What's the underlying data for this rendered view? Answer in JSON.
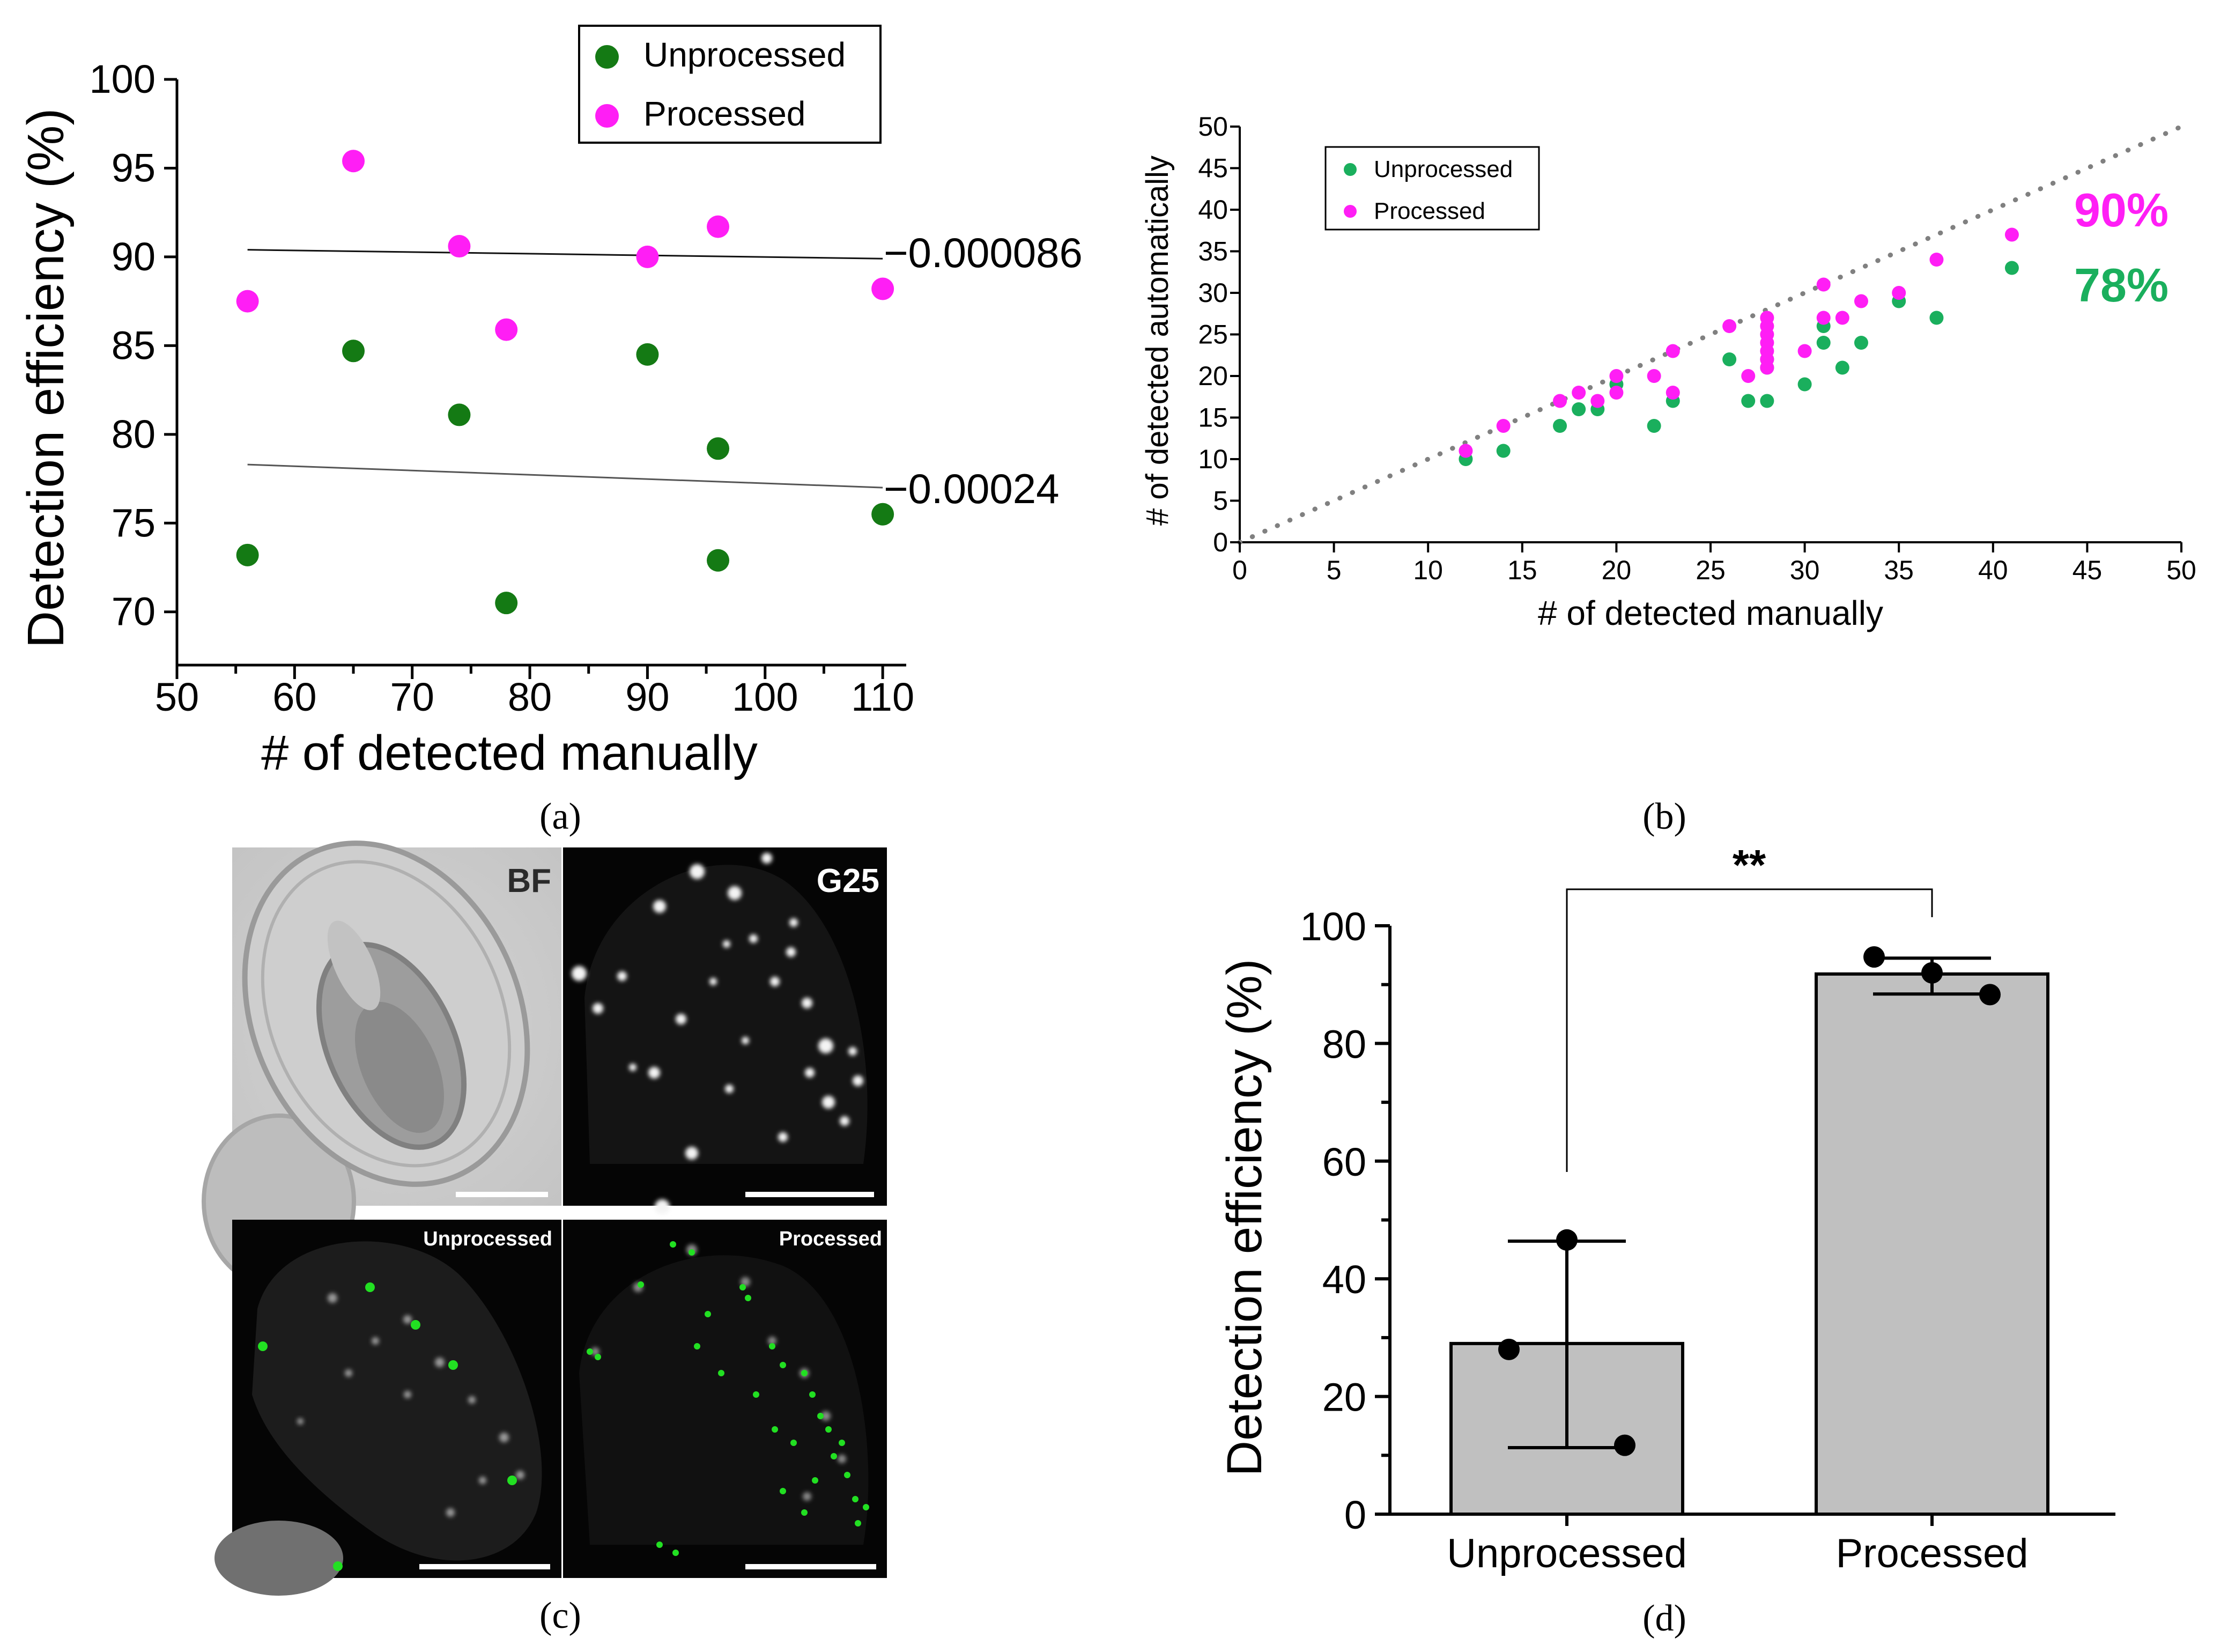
{
  "panels": {
    "a": {
      "label": "(a)"
    },
    "b": {
      "label": "(b)"
    },
    "c": {
      "label": "(c)"
    },
    "d": {
      "label": "(d)"
    }
  },
  "colors": {
    "unprocessed_a": "#147a14",
    "processed": "#ff1ef5",
    "unprocessed_b": "#1aaf5d",
    "bar_fill": "#c0c0c0"
  },
  "chart_data": [
    {
      "panel": "a",
      "type": "scatter",
      "xlabel": "# of detected manually",
      "ylabel": "Detection efficiency (%)",
      "xlim": [
        50,
        112
      ],
      "ylim": [
        67,
        100
      ],
      "xticks": [
        50,
        60,
        70,
        80,
        90,
        100,
        110
      ],
      "yticks": [
        70,
        75,
        80,
        85,
        90,
        95,
        100
      ],
      "legend_position": "top-right",
      "series": [
        {
          "name": "Unprocessed",
          "color": "#147a14",
          "points": [
            [
              56,
              73.2
            ],
            [
              65,
              84.7
            ],
            [
              74,
              81.1
            ],
            [
              78,
              70.5
            ],
            [
              90,
              84.5
            ],
            [
              96,
              79.2
            ],
            [
              96,
              72.9
            ],
            [
              110,
              75.5
            ]
          ],
          "trend": {
            "x": [
              56,
              110
            ],
            "y": [
              78.3,
              77.0
            ],
            "slope_label": "−0.00024"
          }
        },
        {
          "name": "Processed",
          "color": "#ff1ef5",
          "points": [
            [
              56,
              87.5
            ],
            [
              65,
              95.4
            ],
            [
              74,
              90.6
            ],
            [
              78,
              85.9
            ],
            [
              90,
              90.0
            ],
            [
              96,
              91.7
            ],
            [
              110,
              88.2
            ]
          ],
          "trend": {
            "x": [
              56,
              110
            ],
            "y": [
              90.4,
              89.9
            ],
            "slope_label": "−0.000086"
          }
        }
      ]
    },
    {
      "panel": "b",
      "type": "scatter",
      "xlabel": "# of detected manually",
      "ylabel": "# of detected automatically",
      "xlim": [
        0,
        50
      ],
      "ylim": [
        0,
        50
      ],
      "xticks": [
        0,
        5,
        10,
        15,
        20,
        25,
        30,
        35,
        40,
        45,
        50
      ],
      "yticks": [
        0,
        5,
        10,
        15,
        20,
        25,
        30,
        35,
        40,
        45,
        50
      ],
      "legend_position": "top-left",
      "reference_line": "y = x (dotted)",
      "annotations": [
        {
          "text": "90%",
          "color": "#ff1ef5"
        },
        {
          "text": "78%",
          "color": "#1aaf5d"
        }
      ],
      "series": [
        {
          "name": "Unprocessed",
          "color": "#1aaf5d",
          "points": [
            [
              12,
              10
            ],
            [
              14,
              11
            ],
            [
              17,
              14
            ],
            [
              18,
              16
            ],
            [
              19,
              16
            ],
            [
              20,
              19
            ],
            [
              22,
              14
            ],
            [
              23,
              17
            ],
            [
              26,
              22
            ],
            [
              27,
              17
            ],
            [
              28,
              17
            ],
            [
              28,
              21
            ],
            [
              28,
              22
            ],
            [
              30,
              19
            ],
            [
              31,
              24
            ],
            [
              31,
              26
            ],
            [
              32,
              21
            ],
            [
              33,
              24
            ],
            [
              35,
              29
            ],
            [
              37,
              27
            ],
            [
              41,
              33
            ]
          ]
        },
        {
          "name": "Processed",
          "color": "#ff1ef5",
          "points": [
            [
              12,
              11
            ],
            [
              14,
              14
            ],
            [
              17,
              17
            ],
            [
              18,
              18
            ],
            [
              19,
              17
            ],
            [
              20,
              18
            ],
            [
              20,
              20
            ],
            [
              22,
              20
            ],
            [
              23,
              18
            ],
            [
              23,
              23
            ],
            [
              26,
              26
            ],
            [
              27,
              20
            ],
            [
              28,
              21
            ],
            [
              28,
              22
            ],
            [
              28,
              23
            ],
            [
              28,
              24
            ],
            [
              28,
              25
            ],
            [
              28,
              26
            ],
            [
              28,
              27
            ],
            [
              30,
              23
            ],
            [
              31,
              27
            ],
            [
              31,
              31
            ],
            [
              32,
              27
            ],
            [
              33,
              29
            ],
            [
              35,
              30
            ],
            [
              37,
              34
            ],
            [
              41,
              37
            ]
          ]
        }
      ]
    },
    {
      "panel": "d",
      "type": "bar",
      "ylabel": "Detection efficiency (%)",
      "categories": [
        "Unprocessed",
        "Processed"
      ],
      "values": [
        29,
        91.8
      ],
      "error_low": [
        11.3,
        88.4
      ],
      "error_high": [
        46.4,
        94.5
      ],
      "points": [
        [
          46.6,
          28.0,
          11.7
        ],
        [
          94.7,
          92.0,
          88.3
        ]
      ],
      "ylim": [
        0,
        100
      ],
      "yticks": [
        0,
        20,
        40,
        60,
        80,
        100
      ],
      "significance": "**"
    }
  ],
  "images": {
    "bf": "BF",
    "g25": "G25",
    "unprocessed": "Unprocessed",
    "processed": "Processed"
  }
}
